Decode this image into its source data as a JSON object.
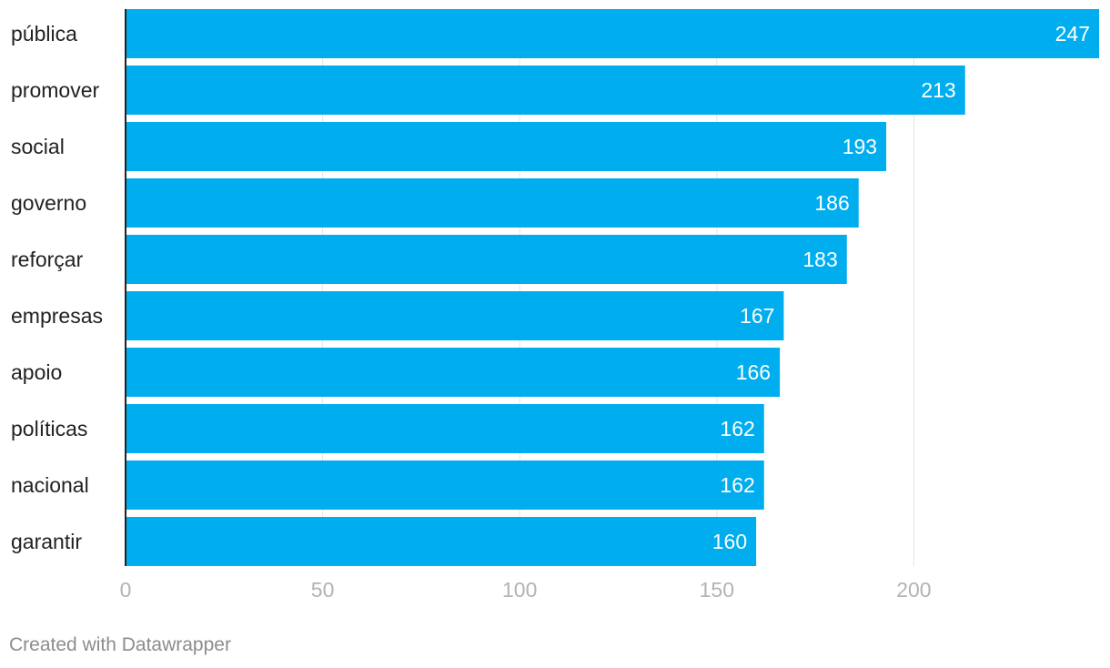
{
  "chart_data": {
    "type": "bar",
    "orientation": "horizontal",
    "categories": [
      "pública",
      "promover",
      "social",
      "governo",
      "reforçar",
      "empresas",
      "apoio",
      "políticas",
      "nacional",
      "garantir"
    ],
    "values": [
      247,
      213,
      193,
      186,
      183,
      167,
      166,
      162,
      162,
      160
    ],
    "xlim": [
      0,
      247
    ],
    "xticks": [
      0,
      50,
      100,
      150,
      200
    ],
    "grid": true,
    "legend": "none",
    "data_labels": true
  },
  "colors": {
    "bar": "#00adee",
    "grid": "#e6e6e6",
    "axis": "#222222"
  },
  "footer": {
    "credit": "Created with Datawrapper"
  }
}
